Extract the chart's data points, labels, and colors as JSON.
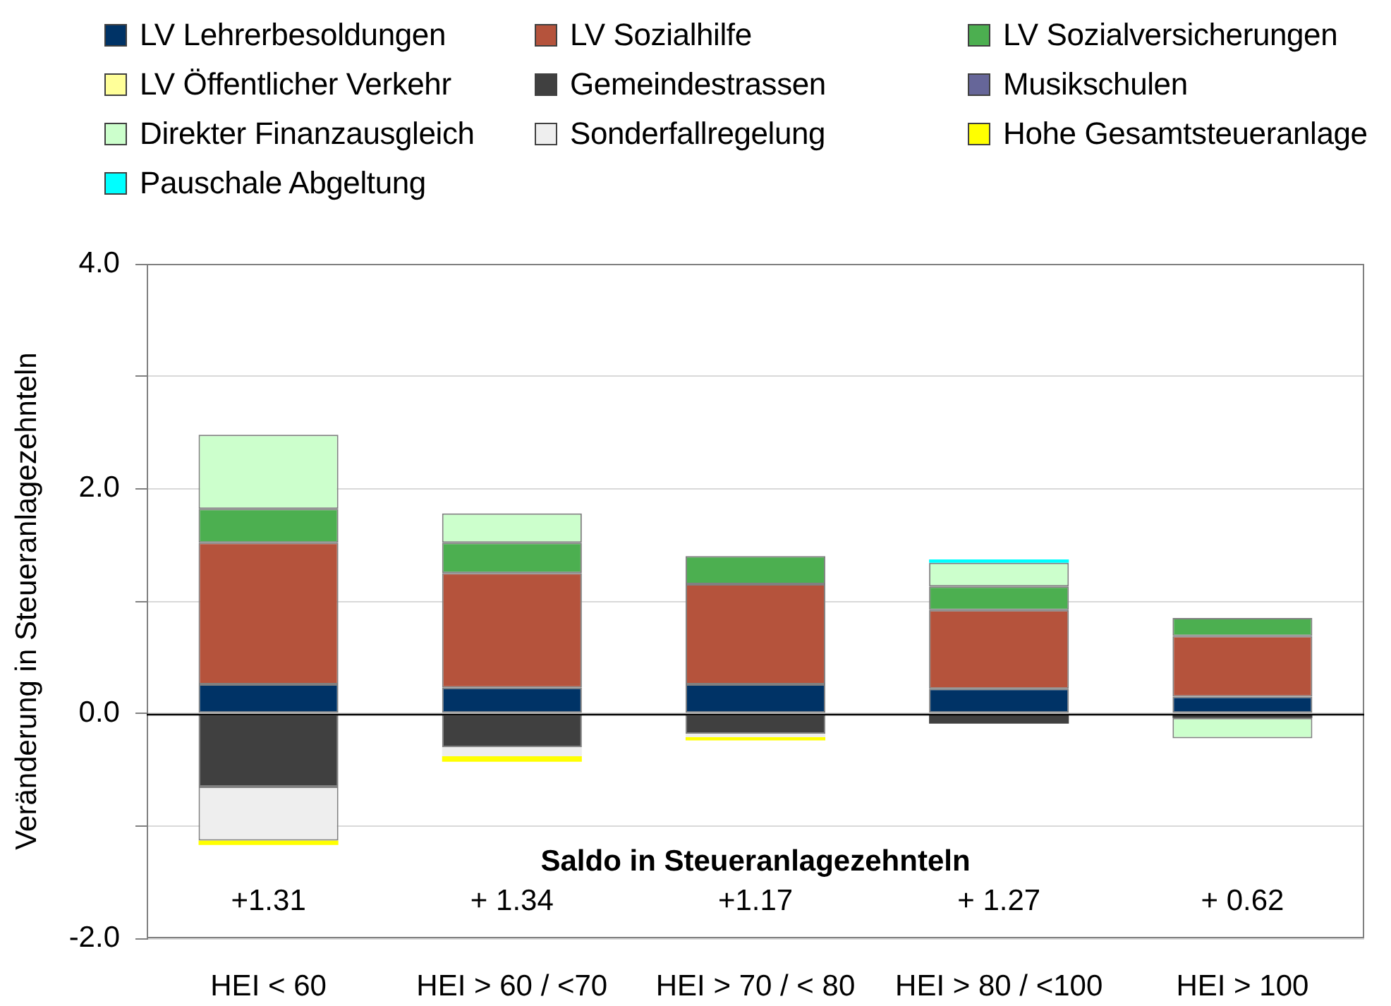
{
  "chart_data": {
    "type": "bar",
    "stacked": true,
    "categories": [
      "HEI < 60",
      "HEI > 60 / <70",
      "HEI > 70 / < 80",
      "HEI > 80 / <100",
      "HEI > 100"
    ],
    "series": [
      {
        "name": "LV Lehrerbesoldungen",
        "color": "#003366",
        "values": [
          0.26,
          0.23,
          0.26,
          0.22,
          0.15
        ]
      },
      {
        "name": "LV Sozialhilfe",
        "color": "#b5533c",
        "values": [
          1.26,
          1.02,
          0.89,
          0.7,
          0.54
        ]
      },
      {
        "name": "LV Sozialversicherungen",
        "color": "#4caf50",
        "values": [
          0.3,
          0.27,
          0.25,
          0.21,
          0.16
        ]
      },
      {
        "name": "LV Öffentlicher Verkehr",
        "color": "#ffff99",
        "values": [
          null,
          null,
          null,
          null,
          null
        ]
      },
      {
        "name": "Gemeindestrassen",
        "color": "#404040",
        "values": [
          -0.65,
          -0.3,
          -0.18,
          -0.09,
          -0.04
        ]
      },
      {
        "name": "Musikschulen",
        "color": "#666699",
        "values": [
          null,
          null,
          null,
          null,
          null
        ]
      },
      {
        "name": "Direkter Finanzausgleich",
        "color": "#ccffcc",
        "values": [
          0.66,
          0.26,
          null,
          0.21,
          -0.18
        ]
      },
      {
        "name": "Sonderfallregelung",
        "color": "#eeeeee",
        "values": [
          -0.48,
          -0.08,
          -0.03,
          null,
          null
        ]
      },
      {
        "name": "Hohe Gesamtsteueranlage",
        "color": "#ffff00",
        "values": [
          -0.04,
          -0.05,
          -0.03,
          null,
          null
        ]
      },
      {
        "name": "Pauschale Abgeltung",
        "color": "#00ffff",
        "values": [
          null,
          null,
          null,
          0.03,
          null
        ]
      }
    ],
    "ylabel": "Veränderung in Steueranlagezehnteln",
    "ylim": [
      -2,
      4
    ],
    "yticks": [
      {
        "value": -2,
        "label": "-2.0"
      },
      {
        "value": -1,
        "label": null
      },
      {
        "value": 0,
        "label": "0.0"
      },
      {
        "value": 1,
        "label": null
      },
      {
        "value": 2,
        "label": "2.0"
      },
      {
        "value": 3,
        "label": null
      },
      {
        "value": 4,
        "label": "4.0"
      }
    ],
    "grid": "y",
    "legend": "top",
    "annotations": [
      "Saldo in Steueranlagezehnteln",
      "+1.31",
      "+ 1.34",
      "+1.17",
      "+ 1.27",
      "+ 0.62"
    ]
  }
}
